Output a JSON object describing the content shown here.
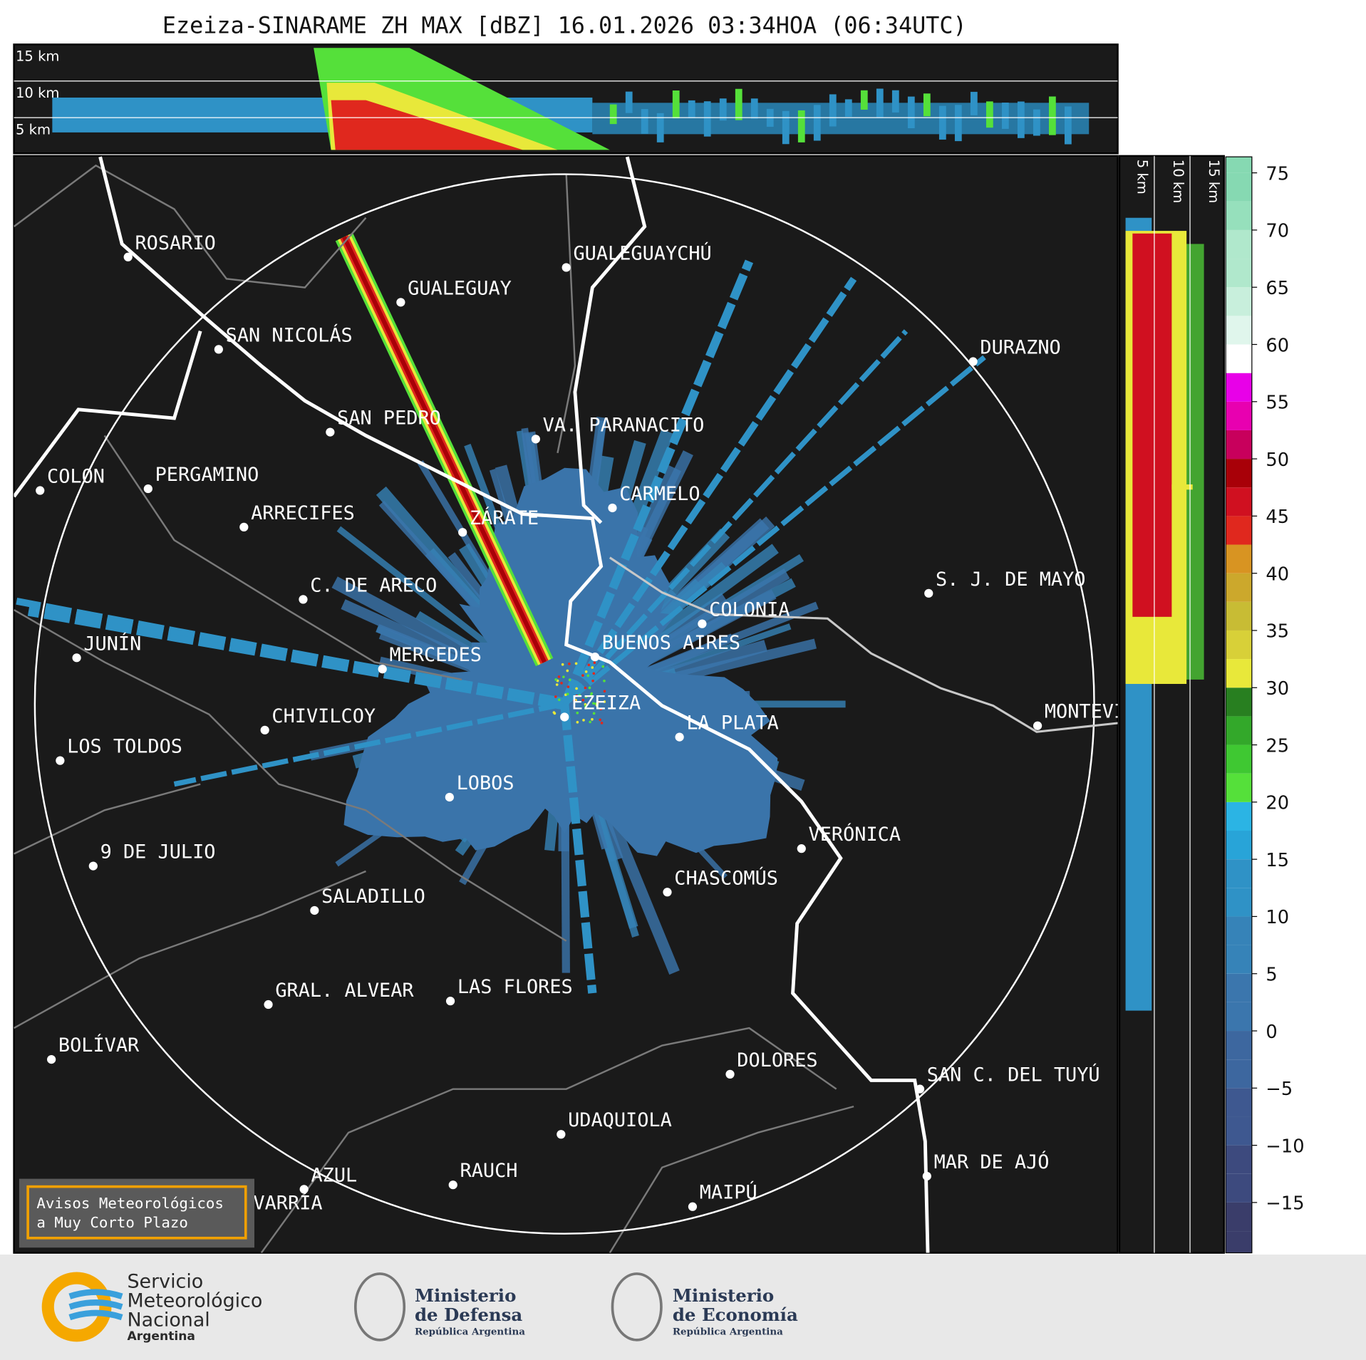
{
  "title": "Ezeiza-SINARAME ZH MAX [dBZ] 16.01.2026 03:34HOA (06:34UTC)",
  "top_panel": {
    "height_labels": [
      "15 km",
      "10 km",
      "5 km"
    ]
  },
  "side_panel": {
    "height_labels": [
      "5 km",
      "10 km",
      "15 km"
    ]
  },
  "cities": [
    "ROSARIO",
    "GUALEGUAYCHÚ",
    "GUALEGUAY",
    "SAN NICOLÁS",
    "DURAZNO",
    "SAN PEDRO",
    "VA. PARANACITO",
    "COLON",
    "PERGAMINO",
    "CARMELO",
    "ARRECIFES",
    "ZÁRATE",
    "S. J. DE MAYO",
    "C. DE ARECO",
    "COLONIA",
    "BUENOS AIRES",
    "JUNÍN",
    "MERCEDES",
    "MONTEVIDEO",
    "EZEIZA",
    "CHIVILCOY",
    "LA PLATA",
    "LOS TOLDOS",
    "LOBOS",
    "VERÓNICA",
    "9 DE JULIO",
    "CHASCOMÚS",
    "SALADILLO",
    "GRAL. ALVEAR",
    "LAS FLORES",
    "BOLÍVAR",
    "DOLORES",
    "SAN C. DEL TUYÚ",
    "UDAQUIOLA",
    "MAR DE AJÓ",
    "RAUCH",
    "AZUL",
    "MAIPÚ",
    "OLAVARRÍA"
  ],
  "colorbar": {
    "range": [
      -19.4,
      76.4
    ],
    "ticks": [
      75,
      70,
      65,
      60,
      55,
      50,
      45,
      40,
      35,
      30,
      25,
      20,
      15,
      10,
      5,
      0,
      {
        "value": -5,
        "label": "−5"
      },
      {
        "value": -10,
        "label": "−10"
      },
      {
        "value": -15,
        "label": "−15"
      }
    ]
  },
  "warning_box": {
    "lines": [
      "Avisos Meteorológicos",
      "a Muy Corto Plazo"
    ]
  },
  "footer": {
    "smn": [
      "Servicio",
      "Meteorológico",
      "Nacional",
      "Argentina"
    ],
    "defensa": {
      "name": [
        "Ministerio",
        "de Defensa"
      ],
      "country": "República Argentina"
    },
    "economia": {
      "name": [
        "Ministerio",
        "de Economía"
      ],
      "country": "República Argentina"
    }
  }
}
